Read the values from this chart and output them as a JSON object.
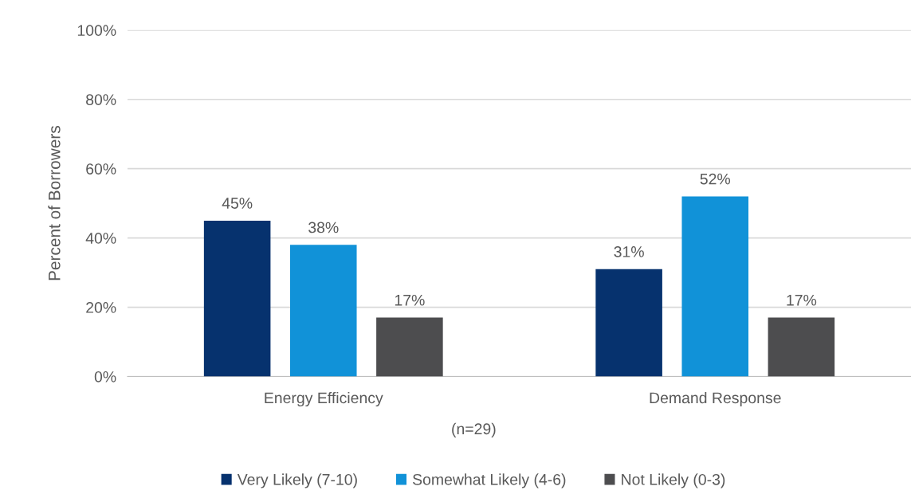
{
  "chart_data": {
    "type": "bar",
    "ylabel": "Percent of Borrowers",
    "categories": [
      "Energy Efficiency",
      "Demand Response"
    ],
    "series": [
      {
        "name": "Very Likely (7-10)",
        "color": "#06326e",
        "values": [
          45,
          31
        ],
        "value_labels": [
          "45%",
          "31%"
        ]
      },
      {
        "name": "Somewhat Likely (4-6)",
        "color": "#1192d8",
        "values": [
          38,
          52
        ],
        "value_labels": [
          "38%",
          "52%"
        ]
      },
      {
        "name": "Not Likely (0-3)",
        "color": "#4d4d4f",
        "values": [
          17,
          17
        ],
        "value_labels": [
          "17%",
          "17%"
        ]
      }
    ],
    "ylim": [
      0,
      100
    ],
    "yticks": [
      {
        "value": 0,
        "label": "0%"
      },
      {
        "value": 20,
        "label": "20%"
      },
      {
        "value": 40,
        "label": "40%"
      },
      {
        "value": 60,
        "label": "60%"
      },
      {
        "value": 80,
        "label": "80%"
      },
      {
        "value": 100,
        "label": "100%"
      }
    ],
    "grid": "y",
    "legend": "bottom",
    "annotations": [
      "(n=29)"
    ]
  }
}
